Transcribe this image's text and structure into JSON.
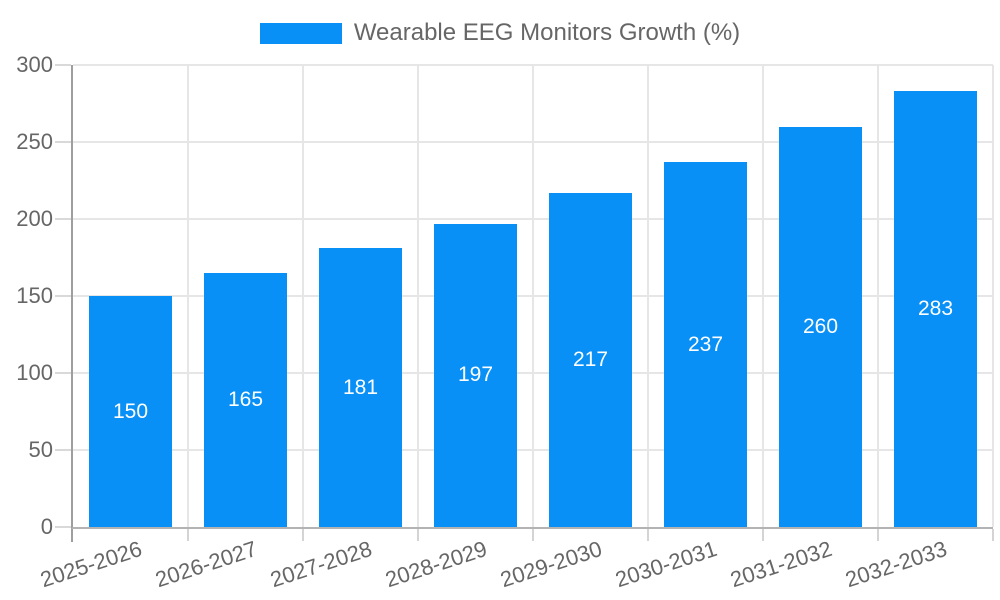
{
  "legend": {
    "label": "Wearable EEG Monitors Growth (%)"
  },
  "colors": {
    "bar": "#0990F7",
    "grid": "#e6e6e6",
    "axis_y": "#9e9e9e",
    "axis_x": "#b3b3b3",
    "tick": "#d9d9d9",
    "tick_label": "#666666",
    "value_label": "#ffffff",
    "background": "#ffffff"
  },
  "chart_data": {
    "type": "bar",
    "title": "",
    "xlabel": "",
    "ylabel": "",
    "legend_position": "top",
    "grid": true,
    "value_labels": "inside-center",
    "x_label_rotation_deg": -18,
    "ylim": [
      0,
      300
    ],
    "ytick_step": 50,
    "ytick_labels": [
      "0",
      "50",
      "100",
      "150",
      "200",
      "250",
      "300"
    ],
    "categories": [
      "2025-2026",
      "2026-2027",
      "2027-2028",
      "2028-2029",
      "2029-2030",
      "2030-2031",
      "2031-2032",
      "2032-2033"
    ],
    "series": [
      {
        "name": "Wearable EEG Monitors Growth (%)",
        "values": [
          150,
          165,
          181,
          197,
          217,
          237,
          260,
          283
        ]
      }
    ]
  }
}
